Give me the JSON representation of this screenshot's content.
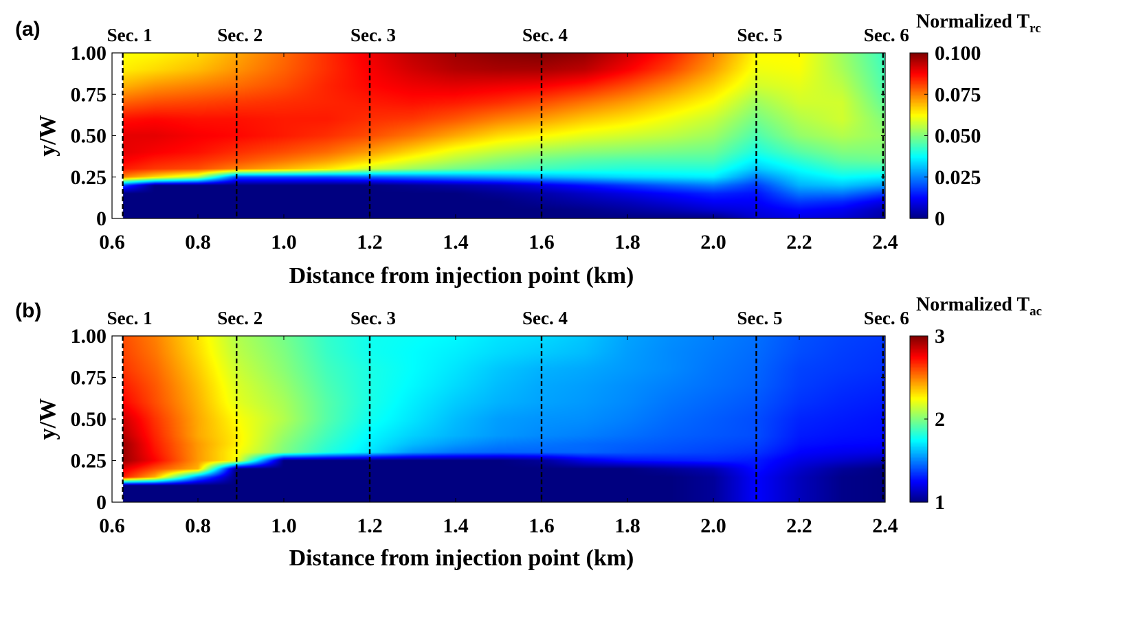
{
  "chart_data": [
    {
      "type": "heatmap",
      "panel_label": "(a)",
      "colorbar_title": "Normalized T",
      "colorbar_title_sub": "rc",
      "xlabel": "Distance from injection point (km)",
      "ylabel": "y/W",
      "xlim": [
        0.6,
        2.4
      ],
      "ylim": [
        0,
        1
      ],
      "xticks": [
        0.6,
        0.8,
        1.0,
        1.2,
        1.4,
        1.6,
        1.8,
        2.0,
        2.2,
        2.4
      ],
      "xtick_labels": [
        "0.6",
        "0.8",
        "1.0",
        "1.2",
        "1.4",
        "1.6",
        "1.8",
        "2.0",
        "2.2",
        "2.4"
      ],
      "yticks": [
        0,
        0.25,
        0.5,
        0.75,
        1.0
      ],
      "ytick_labels": [
        "0",
        "0.25",
        "0.50",
        "0.75",
        "1.00"
      ],
      "colorbar_range": [
        0,
        0.1
      ],
      "colorbar_ticks": [
        0,
        0.025,
        0.05,
        0.075,
        0.1
      ],
      "colorbar_tick_labels": [
        "0",
        "0.025",
        "0.050",
        "0.075",
        "0.100"
      ],
      "sections": [
        {
          "label": "Sec. 1",
          "x": 0.625
        },
        {
          "label": "Sec. 2",
          "x": 0.89
        },
        {
          "label": "Sec. 3",
          "x": 1.2
        },
        {
          "label": "Sec. 4",
          "x": 1.6
        },
        {
          "label": "Sec. 5",
          "x": 2.1
        },
        {
          "label": "Sec. 6",
          "x": 2.395
        }
      ],
      "field": {
        "x": [
          0.625,
          0.7,
          0.8,
          0.89,
          1.0,
          1.1,
          1.2,
          1.3,
          1.4,
          1.5,
          1.6,
          1.7,
          1.8,
          1.9,
          2.0,
          2.1,
          2.2,
          2.3,
          2.4
        ],
        "y": [
          0,
          0.05,
          0.1,
          0.15,
          0.2,
          0.25,
          0.3,
          0.35,
          0.4,
          0.5,
          0.6,
          0.7,
          0.8,
          0.9,
          1.0
        ],
        "values": [
          [
            0.0,
            0.0,
            0.0,
            0.0,
            0.0,
            0.0,
            0.0,
            0.0,
            0.0,
            0.0,
            0.0,
            0.0,
            0.0,
            0.0,
            0.0,
            0.008,
            0.01,
            0.008,
            0.003
          ],
          [
            0.0,
            0.0,
            0.0,
            0.0,
            0.0,
            0.0,
            0.0,
            0.0,
            0.0,
            0.0,
            0.0,
            0.001,
            0.003,
            0.005,
            0.008,
            0.01,
            0.013,
            0.011,
            0.005
          ],
          [
            0.0,
            0.0,
            0.0,
            0.0,
            0.0,
            0.0,
            0.0,
            0.0,
            0.0,
            0.0,
            0.002,
            0.004,
            0.006,
            0.009,
            0.012,
            0.012,
            0.018,
            0.016,
            0.01
          ],
          [
            0.0,
            0.0,
            0.0,
            0.0,
            0.0,
            0.0,
            0.0,
            0.0,
            0.0,
            0.002,
            0.004,
            0.007,
            0.01,
            0.013,
            0.016,
            0.014,
            0.024,
            0.024,
            0.018
          ],
          [
            0.02,
            0.0,
            0.0,
            0.0,
            0.0,
            0.0,
            0.0,
            0.002,
            0.004,
            0.006,
            0.01,
            0.014,
            0.018,
            0.022,
            0.025,
            0.018,
            0.03,
            0.032,
            0.028
          ],
          [
            0.075,
            0.066,
            0.055,
            0.02,
            0.02,
            0.02,
            0.022,
            0.024,
            0.026,
            0.028,
            0.03,
            0.032,
            0.034,
            0.035,
            0.036,
            0.025,
            0.034,
            0.038,
            0.036
          ],
          [
            0.085,
            0.082,
            0.08,
            0.075,
            0.07,
            0.065,
            0.058,
            0.053,
            0.049,
            0.046,
            0.044,
            0.042,
            0.041,
            0.041,
            0.041,
            0.032,
            0.038,
            0.043,
            0.043
          ],
          [
            0.088,
            0.085,
            0.083,
            0.08,
            0.076,
            0.072,
            0.066,
            0.06,
            0.055,
            0.051,
            0.048,
            0.046,
            0.045,
            0.045,
            0.045,
            0.036,
            0.042,
            0.047,
            0.048
          ],
          [
            0.09,
            0.088,
            0.086,
            0.083,
            0.08,
            0.077,
            0.072,
            0.066,
            0.06,
            0.056,
            0.053,
            0.051,
            0.05,
            0.049,
            0.048,
            0.04,
            0.046,
            0.05,
            0.05
          ],
          [
            0.09,
            0.09,
            0.088,
            0.087,
            0.085,
            0.083,
            0.08,
            0.076,
            0.071,
            0.066,
            0.063,
            0.06,
            0.058,
            0.056,
            0.053,
            0.045,
            0.052,
            0.055,
            0.052
          ],
          [
            0.086,
            0.087,
            0.086,
            0.086,
            0.085,
            0.085,
            0.083,
            0.082,
            0.079,
            0.075,
            0.072,
            0.068,
            0.065,
            0.061,
            0.057,
            0.049,
            0.055,
            0.058,
            0.05
          ],
          [
            0.078,
            0.08,
            0.081,
            0.082,
            0.083,
            0.084,
            0.085,
            0.086,
            0.085,
            0.083,
            0.08,
            0.076,
            0.072,
            0.067,
            0.062,
            0.053,
            0.058,
            0.058,
            0.047
          ],
          [
            0.07,
            0.073,
            0.075,
            0.077,
            0.08,
            0.084,
            0.087,
            0.089,
            0.09,
            0.089,
            0.088,
            0.085,
            0.08,
            0.074,
            0.067,
            0.058,
            0.06,
            0.056,
            0.045
          ],
          [
            0.064,
            0.066,
            0.069,
            0.073,
            0.078,
            0.083,
            0.088,
            0.092,
            0.095,
            0.096,
            0.096,
            0.094,
            0.088,
            0.081,
            0.072,
            0.061,
            0.062,
            0.054,
            0.044
          ],
          [
            0.062,
            0.063,
            0.066,
            0.071,
            0.077,
            0.083,
            0.089,
            0.094,
            0.097,
            0.099,
            0.1,
            0.098,
            0.092,
            0.085,
            0.075,
            0.063,
            0.063,
            0.053,
            0.043
          ]
        ]
      }
    },
    {
      "type": "heatmap",
      "panel_label": "(b)",
      "colorbar_title": "Normalized T",
      "colorbar_title_sub": "ac",
      "xlabel": "Distance from injection point (km)",
      "ylabel": "y/W",
      "xlim": [
        0.6,
        2.4
      ],
      "ylim": [
        0,
        1
      ],
      "xticks": [
        0.6,
        0.8,
        1.0,
        1.2,
        1.4,
        1.6,
        1.8,
        2.0,
        2.2,
        2.4
      ],
      "xtick_labels": [
        "0.6",
        "0.8",
        "1.0",
        "1.2",
        "1.4",
        "1.6",
        "1.8",
        "2.0",
        "2.2",
        "2.4"
      ],
      "yticks": [
        0,
        0.25,
        0.5,
        0.75,
        1.0
      ],
      "ytick_labels": [
        "0",
        "0.25",
        "0.50",
        "0.75",
        "1.00"
      ],
      "colorbar_range": [
        1,
        3
      ],
      "colorbar_ticks": [
        1,
        2,
        3
      ],
      "colorbar_tick_labels": [
        "1",
        "2",
        "3"
      ],
      "sections": [
        {
          "label": "Sec. 1",
          "x": 0.625
        },
        {
          "label": "Sec. 2",
          "x": 0.89
        },
        {
          "label": "Sec. 3",
          "x": 1.2
        },
        {
          "label": "Sec. 4",
          "x": 1.6
        },
        {
          "label": "Sec. 5",
          "x": 2.1
        },
        {
          "label": "Sec. 6",
          "x": 2.395
        }
      ],
      "field": {
        "x": [
          0.625,
          0.7,
          0.8,
          0.89,
          1.0,
          1.1,
          1.2,
          1.3,
          1.4,
          1.5,
          1.6,
          1.7,
          1.8,
          1.9,
          2.0,
          2.1,
          2.2,
          2.3,
          2.4
        ],
        "y": [
          0,
          0.05,
          0.1,
          0.15,
          0.2,
          0.25,
          0.3,
          0.35,
          0.4,
          0.5,
          0.6,
          0.7,
          0.8,
          0.9,
          1.0
        ],
        "values": [
          [
            1.0,
            1.0,
            1.0,
            1.0,
            1.0,
            1.0,
            1.0,
            1.0,
            1.0,
            1.0,
            1.0,
            1.0,
            1.0,
            1.0,
            1.05,
            1.25,
            1.12,
            1.02,
            1.0
          ],
          [
            1.0,
            1.0,
            1.0,
            1.0,
            1.0,
            1.0,
            1.0,
            1.0,
            1.0,
            1.0,
            1.0,
            1.0,
            1.0,
            1.0,
            1.05,
            1.25,
            1.12,
            1.02,
            1.0
          ],
          [
            1.0,
            1.0,
            1.0,
            1.0,
            1.0,
            1.0,
            1.0,
            1.0,
            1.0,
            1.0,
            1.0,
            1.0,
            1.0,
            1.0,
            1.05,
            1.25,
            1.12,
            1.02,
            1.0
          ],
          [
            2.7,
            2.4,
            1.5,
            1.0,
            1.0,
            1.0,
            1.0,
            1.0,
            1.0,
            1.0,
            1.0,
            1.0,
            1.0,
            1.0,
            1.05,
            1.25,
            1.12,
            1.02,
            1.0
          ],
          [
            2.8,
            2.6,
            2.4,
            1.0,
            1.0,
            1.0,
            1.0,
            1.0,
            1.0,
            1.0,
            1.0,
            1.0,
            1.0,
            1.05,
            1.1,
            1.28,
            1.15,
            1.05,
            1.0
          ],
          [
            2.95,
            2.75,
            2.45,
            2.25,
            1.0,
            1.0,
            1.0,
            1.0,
            1.0,
            1.0,
            1.05,
            1.2,
            1.28,
            1.3,
            1.32,
            1.3,
            1.2,
            1.15,
            1.1
          ],
          [
            2.95,
            2.72,
            2.45,
            2.25,
            2.0,
            1.82,
            1.7,
            1.55,
            1.48,
            1.45,
            1.45,
            1.45,
            1.42,
            1.4,
            1.38,
            1.35,
            1.25,
            1.22,
            1.2
          ],
          [
            2.95,
            2.7,
            2.45,
            2.28,
            2.02,
            1.85,
            1.72,
            1.62,
            1.55,
            1.5,
            1.48,
            1.46,
            1.44,
            1.42,
            1.4,
            1.38,
            1.28,
            1.26,
            1.25
          ],
          [
            2.9,
            2.68,
            2.42,
            2.28,
            2.05,
            1.88,
            1.74,
            1.66,
            1.6,
            1.55,
            1.52,
            1.5,
            1.47,
            1.44,
            1.42,
            1.4,
            1.3,
            1.28,
            1.27
          ],
          [
            2.85,
            2.65,
            2.42,
            2.25,
            2.1,
            1.92,
            1.78,
            1.7,
            1.62,
            1.56,
            1.54,
            1.53,
            1.5,
            1.46,
            1.43,
            1.4,
            1.32,
            1.3,
            1.28
          ],
          [
            2.75,
            2.6,
            2.4,
            2.2,
            2.08,
            1.92,
            1.8,
            1.72,
            1.65,
            1.6,
            1.57,
            1.55,
            1.52,
            1.48,
            1.45,
            1.42,
            1.35,
            1.32,
            1.3
          ],
          [
            2.7,
            2.58,
            2.38,
            2.18,
            2.05,
            1.9,
            1.8,
            1.74,
            1.68,
            1.62,
            1.58,
            1.56,
            1.53,
            1.5,
            1.47,
            1.44,
            1.37,
            1.34,
            1.32
          ],
          [
            2.65,
            2.55,
            2.35,
            2.15,
            2.02,
            1.88,
            1.8,
            1.75,
            1.7,
            1.64,
            1.6,
            1.58,
            1.55,
            1.52,
            1.48,
            1.45,
            1.38,
            1.36,
            1.34
          ],
          [
            2.62,
            2.52,
            2.32,
            2.12,
            2.0,
            1.86,
            1.78,
            1.75,
            1.72,
            1.68,
            1.65,
            1.62,
            1.56,
            1.52,
            1.49,
            1.46,
            1.4,
            1.37,
            1.35
          ],
          [
            2.6,
            2.5,
            2.3,
            2.1,
            1.98,
            1.85,
            1.78,
            1.76,
            1.74,
            1.7,
            1.68,
            1.64,
            1.57,
            1.53,
            1.5,
            1.47,
            1.41,
            1.38,
            1.36
          ]
        ]
      }
    }
  ]
}
